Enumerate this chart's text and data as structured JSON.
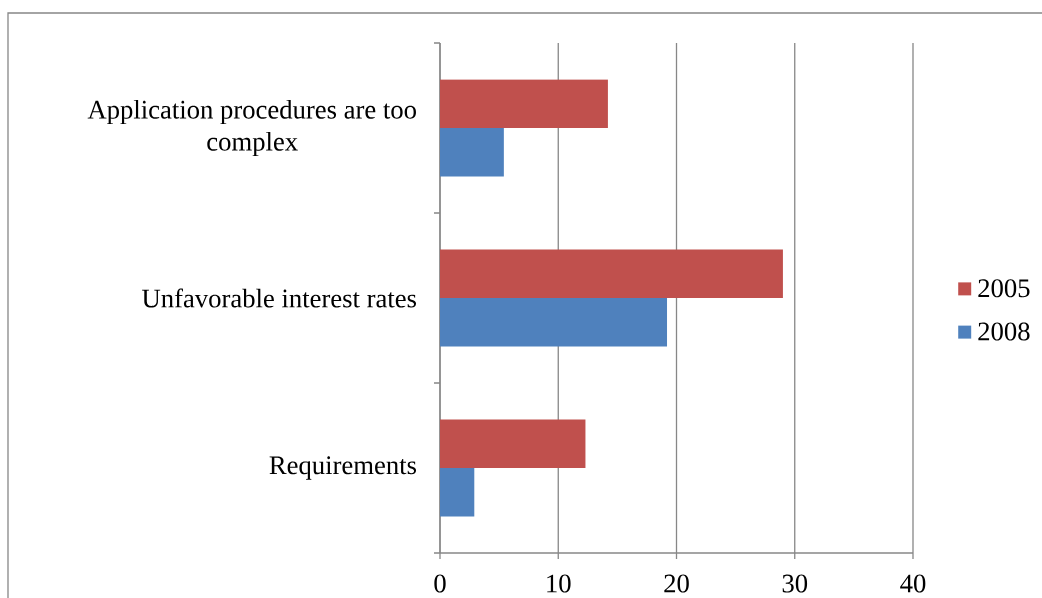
{
  "chart_data": {
    "type": "bar",
    "orientation": "horizontal",
    "categories": [
      "Application procedures are too complex",
      "Unfavorable interest rates",
      "Requirements"
    ],
    "series": [
      {
        "name": "2005",
        "color": "#c0504d",
        "values": [
          14.2,
          29.0,
          12.3
        ]
      },
      {
        "name": "2008",
        "color": "#4f81bd",
        "values": [
          5.4,
          19.2,
          2.9
        ]
      }
    ],
    "xlim": [
      0,
      40
    ],
    "xticks": [
      0,
      10,
      20,
      30,
      40
    ],
    "grid": "x",
    "legend": "right"
  }
}
